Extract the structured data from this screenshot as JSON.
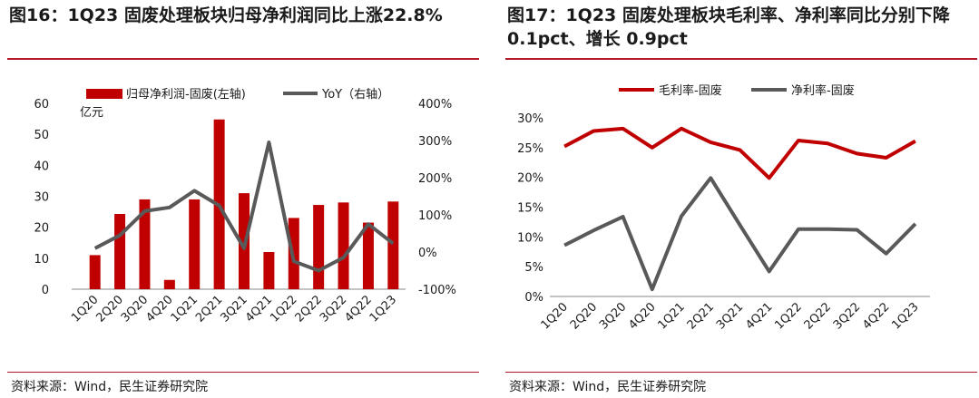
{
  "left": {
    "title": "图16：1Q23 固废处理板块归母净利润同比上涨22.8%",
    "source": "资料来源：Wind，民生证券研究院",
    "unit_label": "亿元"
  },
  "right": {
    "title": "图17：1Q23 固废处理板块毛利率、净利率同比分别下降 0.1pct、增长 0.9pct",
    "source": "资料来源：Wind，民生证券研究院"
  },
  "chart_data": [
    {
      "type": "bar+line",
      "title": "1Q23 固废处理板块归母净利润同比上涨22.8%",
      "categories": [
        "1Q20",
        "2Q20",
        "3Q20",
        "4Q20",
        "1Q21",
        "2Q21",
        "3Q21",
        "4Q21",
        "1Q22",
        "2Q22",
        "3Q22",
        "4Q22",
        "1Q23"
      ],
      "series": [
        {
          "name": "归母净利润-固废(左轴)",
          "type": "bar",
          "axis": "left",
          "color": "#c00000",
          "values": [
            11.0,
            24.3,
            29.0,
            3.0,
            29.0,
            54.8,
            31.0,
            12.0,
            23.0,
            27.2,
            28.0,
            21.5,
            28.3
          ]
        },
        {
          "name": "YoY（右轴）",
          "type": "line",
          "axis": "right",
          "color": "#595959",
          "values": [
            0.1,
            0.45,
            1.1,
            1.2,
            1.65,
            1.25,
            0.1,
            2.95,
            -0.25,
            -0.5,
            -0.15,
            0.75,
            0.23
          ]
        }
      ],
      "yleft": {
        "min": 0,
        "max": 60,
        "ticks": [
          0,
          10,
          20,
          30,
          40,
          50,
          60
        ]
      },
      "yright": {
        "min": -1,
        "max": 4,
        "ticks": [
          "-100%",
          "0%",
          "100%",
          "200%",
          "300%",
          "400%"
        ]
      }
    },
    {
      "type": "line",
      "title": "1Q23 固废处理板块毛利率、净利率同比分别下降 0.1pct、增长 0.9pct",
      "categories": [
        "1Q20",
        "2Q20",
        "3Q20",
        "4Q20",
        "1Q21",
        "2Q21",
        "3Q21",
        "4Q21",
        "1Q22",
        "2Q22",
        "3Q22",
        "4Q22",
        "1Q23"
      ],
      "series": [
        {
          "name": "毛利率-固废",
          "color": "#c00000",
          "values": [
            25.2,
            27.8,
            28.2,
            25.0,
            28.2,
            25.9,
            24.6,
            19.9,
            26.2,
            25.7,
            24.0,
            23.3,
            26.1
          ]
        },
        {
          "name": "净利率-固废",
          "color": "#595959",
          "values": [
            8.6,
            11.1,
            13.4,
            1.2,
            13.5,
            19.9,
            12.0,
            4.2,
            11.3,
            11.3,
            11.2,
            7.2,
            12.2
          ]
        }
      ],
      "y": {
        "min": 0,
        "max": 30,
        "ticks": [
          "0%",
          "5%",
          "10%",
          "15%",
          "20%",
          "25%",
          "30%"
        ]
      }
    }
  ]
}
